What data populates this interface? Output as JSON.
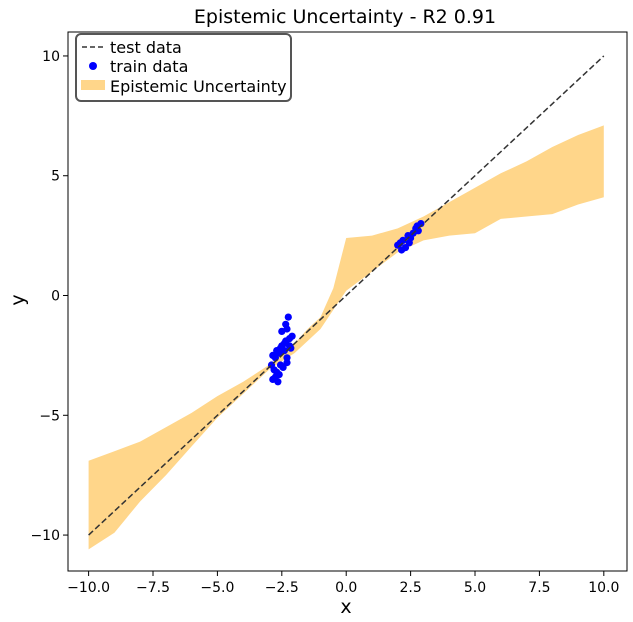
{
  "chart_data": {
    "type": "line",
    "title": "Epistemic Uncertainty - R2 0.91",
    "xlabel": "x",
    "ylabel": "y",
    "xlim": [
      -10.8,
      10.9
    ],
    "ylim": [
      -11.5,
      11.0
    ],
    "xticks": [
      -10.0,
      -7.5,
      -5.0,
      -2.5,
      0.0,
      2.5,
      5.0,
      7.5,
      10.0
    ],
    "xtick_labels": [
      "−10.0",
      "−7.5",
      "−5.0",
      "−2.5",
      "0.0",
      "2.5",
      "5.0",
      "7.5",
      "10.0"
    ],
    "yticks": [
      -10,
      -5,
      0,
      5,
      10
    ],
    "ytick_labels": [
      "−10",
      "−5",
      "0",
      "5",
      "10"
    ],
    "grid": false,
    "legend_position": "top-left",
    "series": [
      {
        "name": "test data",
        "kind": "line",
        "style": "dashed",
        "color": "#333333",
        "x": [
          -10,
          10
        ],
        "y": [
          -10,
          10
        ]
      },
      {
        "name": "train data",
        "kind": "scatter",
        "color": "#0000ff",
        "x": [
          -2.9,
          -2.85,
          -2.8,
          -2.75,
          -2.7,
          -2.65,
          -2.6,
          -2.55,
          -2.5,
          -2.45,
          -2.4,
          -2.35,
          -2.3,
          -2.25,
          -2.2,
          -2.15,
          -2.1,
          -2.85,
          -2.7,
          -2.6,
          -2.5,
          -2.4,
          -2.3,
          -2.2,
          -2.75,
          -2.55,
          -2.35,
          -2.3,
          2.0,
          2.1,
          2.2,
          2.3,
          2.4,
          2.5,
          2.6,
          2.7,
          2.8,
          2.9,
          2.15,
          2.45,
          2.75
        ],
        "y": [
          -2.9,
          -3.5,
          -3.1,
          -2.6,
          -3.2,
          -3.6,
          -2.4,
          -2.9,
          -2.1,
          -3.0,
          -2.3,
          -1.9,
          -2.6,
          -0.9,
          -1.8,
          -2.2,
          -1.7,
          -2.5,
          -2.3,
          -3.3,
          -1.5,
          -2.0,
          -1.4,
          -2.1,
          -3.4,
          -2.2,
          -1.2,
          -2.8,
          2.1,
          2.2,
          2.3,
          2.0,
          2.5,
          2.4,
          2.6,
          2.8,
          2.7,
          3.0,
          1.9,
          2.2,
          2.9
        ]
      },
      {
        "name": "Epistemic Uncertainty",
        "kind": "band",
        "color": "#ffd68a",
        "x": [
          -10,
          -9,
          -8,
          -7,
          -6,
          -5,
          -4,
          -3,
          -2,
          -1.5,
          -1,
          -0.5,
          0,
          1,
          2,
          3,
          4,
          5,
          6,
          7,
          8,
          9,
          10
        ],
        "upper": [
          -6.9,
          -6.5,
          -6.1,
          -5.5,
          -4.9,
          -4.2,
          -3.6,
          -2.9,
          -2.0,
          -1.4,
          -0.9,
          0.3,
          2.4,
          2.5,
          2.8,
          3.3,
          3.9,
          4.5,
          5.1,
          5.6,
          6.2,
          6.7,
          7.1
        ],
        "lower": [
          -10.6,
          -9.9,
          -8.6,
          -7.5,
          -6.3,
          -5.1,
          -4.1,
          -3.1,
          -2.4,
          -1.9,
          -1.4,
          -0.6,
          0.2,
          1.0,
          1.8,
          2.3,
          2.5,
          2.6,
          3.2,
          3.3,
          3.4,
          3.8,
          4.1
        ]
      }
    ]
  }
}
